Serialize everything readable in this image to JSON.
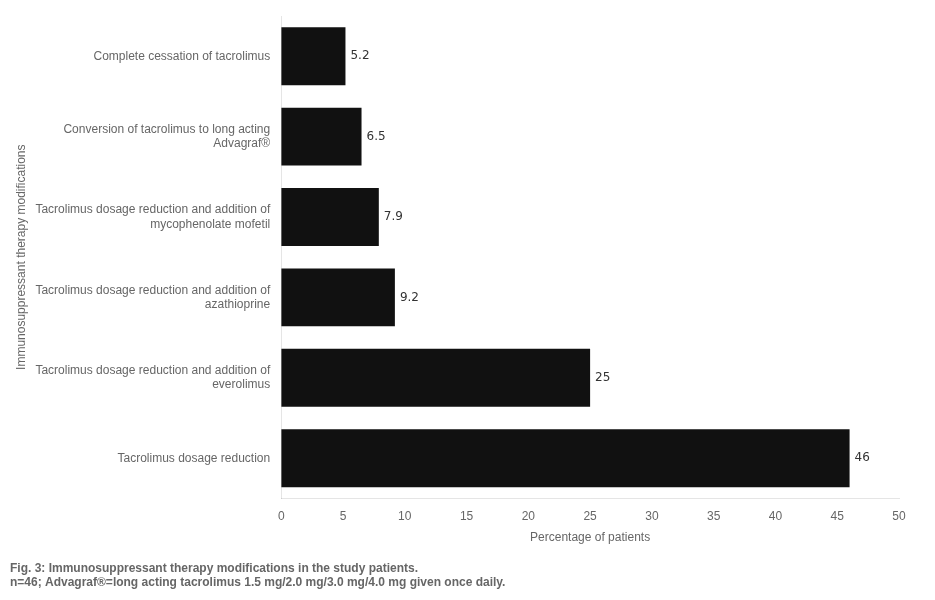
{
  "chart_data": {
    "type": "bar",
    "orientation": "horizontal",
    "categories": [
      "Tacrolimus dosage reduction",
      "Tacrolimus dosage reduction and addition of\neverolimus",
      "Tacrolimus dosage reduction and addition of\nazathioprine",
      "Tacrolimus dosage reduction and addition of\nmycophenolate mofetil",
      "Conversion of tacrolimus to long acting\nAdvagraf®",
      "Complete cessation of tacrolimus"
    ],
    "values": [
      46,
      25,
      9.2,
      7.9,
      6.5,
      5.2
    ],
    "color": "#111111",
    "xlabel": "Percentage of patients",
    "ylabel": "Immunosuppressant therapy modifications",
    "xlim": [
      0,
      50
    ],
    "xticks": [
      0,
      5,
      10,
      15,
      20,
      25,
      30,
      35,
      40,
      45,
      50
    ],
    "data_labels": true,
    "grid": false,
    "annotations": [
      "Fig. 3: Immunosuppressant therapy modifications in the study patients.",
      "n=46; Advagraf®=long acting tacrolimus 1.5 mg/2.0 mg/3.0 mg/4.0 mg given once daily."
    ]
  }
}
